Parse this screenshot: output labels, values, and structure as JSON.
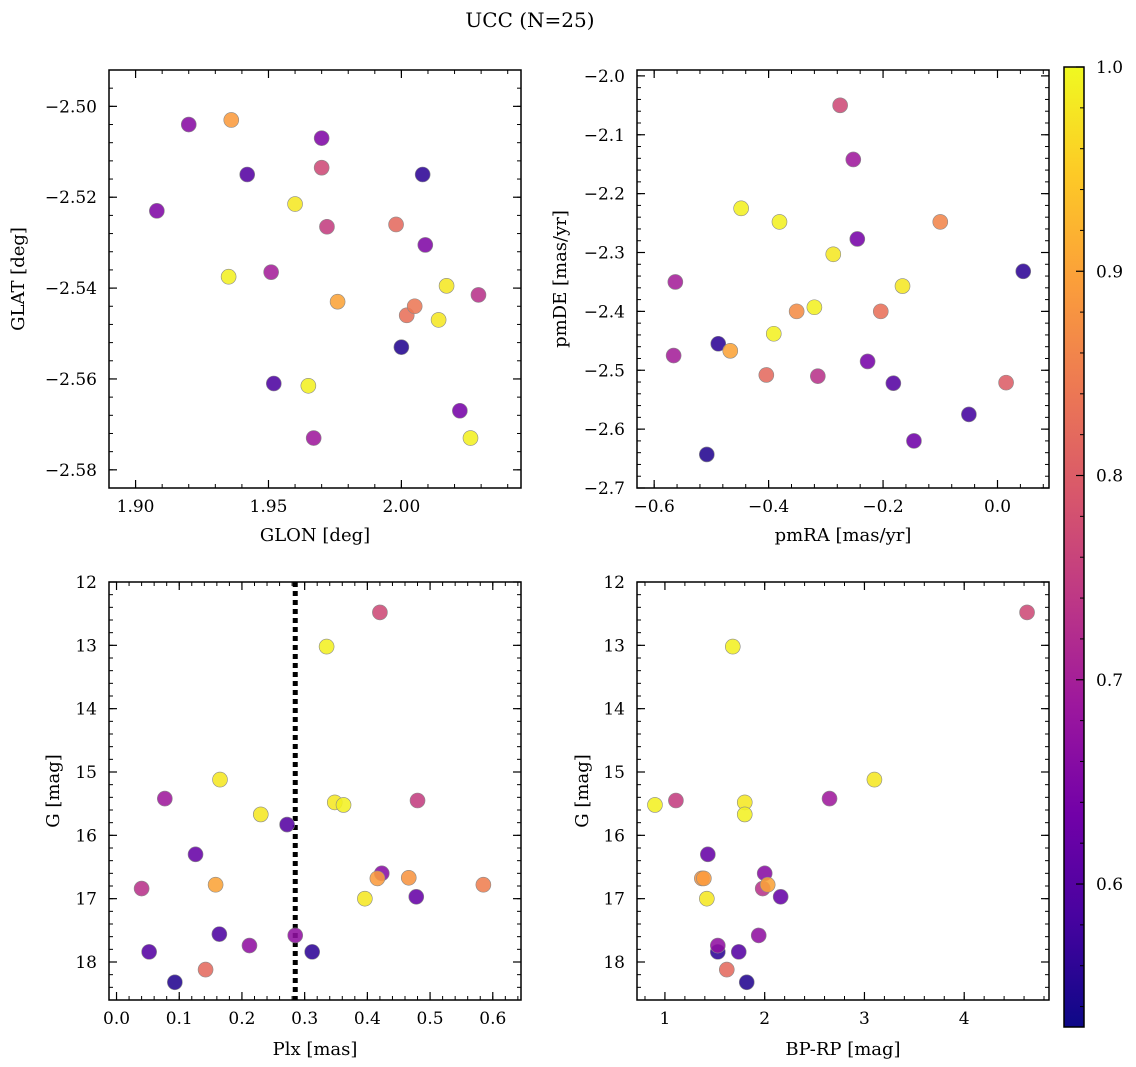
{
  "title": "UCC (N=25)",
  "colormap": {
    "name": "plasma",
    "stops": [
      "#0d0887",
      "#46039f",
      "#7201a8",
      "#9c179e",
      "#bd3786",
      "#d8576b",
      "#ed7953",
      "#fb9f3a",
      "#fdca26",
      "#f0f921"
    ],
    "range": [
      0.53,
      1.0
    ],
    "ticks": [
      0.6,
      0.7,
      0.8,
      0.9,
      1.0
    ],
    "tick_labels": [
      "0.6",
      "0.7",
      "0.8",
      "0.9",
      "1.0"
    ]
  },
  "chart_data": [
    {
      "type": "scatter",
      "xlabel": "GLON [deg]",
      "ylabel": "GLAT [deg]",
      "xlim": [
        1.89,
        2.045
      ],
      "ylim": [
        -2.584,
        -2.492
      ],
      "xticks": [
        1.9,
        1.95,
        2.0
      ],
      "xtick_labels": [
        "1.90",
        "1.95",
        "2.00"
      ],
      "yticks": [
        -2.5,
        -2.52,
        -2.54,
        -2.56,
        -2.58
      ],
      "ytick_labels": [
        "−2.50",
        "−2.52",
        "−2.54",
        "−2.56",
        "−2.58"
      ],
      "x": [
        1.92,
        1.936,
        1.97,
        1.908,
        1.942,
        1.97,
        2.008,
        1.96,
        1.972,
        1.998,
        2.009,
        1.935,
        1.951,
        2.017,
        2.029,
        1.976,
        2.005,
        2.002,
        2.014,
        2.0,
        1.952,
        1.965,
        2.022,
        1.967,
        2.026
      ],
      "y": [
        -2.504,
        -2.503,
        -2.507,
        -2.523,
        -2.515,
        -2.5135,
        -2.515,
        -2.5215,
        -2.5265,
        -2.526,
        -2.5305,
        -2.5375,
        -2.5365,
        -2.5395,
        -2.5415,
        -2.543,
        -2.544,
        -2.546,
        -2.547,
        -2.553,
        -2.561,
        -2.5615,
        -2.567,
        -2.573,
        -2.573
      ],
      "membership": [
        0.66,
        0.89,
        0.65,
        0.65,
        0.6,
        0.77,
        0.56,
        0.98,
        0.75,
        0.82,
        0.65,
        0.99,
        0.7,
        0.98,
        0.73,
        0.9,
        0.84,
        0.83,
        0.98,
        0.55,
        0.59,
        0.99,
        0.64,
        0.69,
        0.99
      ]
    },
    {
      "type": "scatter",
      "xlabel": "pmRA [mas/yr]",
      "ylabel": "pmDE [mas/yr]",
      "xlim": [
        -0.63,
        0.09
      ],
      "ylim": [
        -2.7,
        -1.99
      ],
      "xticks": [
        -0.6,
        -0.4,
        -0.2,
        0.0
      ],
      "xtick_labels": [
        "−0.6",
        "−0.4",
        "−0.2",
        "0.0"
      ],
      "yticks": [
        -2.0,
        -2.1,
        -2.2,
        -2.3,
        -2.4,
        -2.5,
        -2.6,
        -2.7
      ],
      "ytick_labels": [
        "−2.0",
        "−2.1",
        "−2.2",
        "−2.3",
        "−2.4",
        "−2.5",
        "−2.6",
        "−2.7"
      ],
      "x": [
        -0.275,
        -0.252,
        -0.448,
        -0.381,
        -0.1,
        -0.245,
        -0.287,
        -0.563,
        -0.166,
        0.045,
        -0.32,
        -0.351,
        -0.204,
        -0.391,
        -0.488,
        -0.467,
        -0.566,
        -0.227,
        -0.404,
        -0.314,
        -0.182,
        0.015,
        -0.05,
        -0.146,
        -0.508
      ],
      "y": [
        -2.05,
        -2.142,
        -2.225,
        -2.248,
        -2.248,
        -2.277,
        -2.303,
        -2.35,
        -2.357,
        -2.332,
        -2.393,
        -2.4,
        -2.4,
        -2.438,
        -2.455,
        -2.467,
        -2.475,
        -2.485,
        -2.508,
        -2.51,
        -2.522,
        -2.521,
        -2.575,
        -2.62,
        -2.643
      ],
      "membership": [
        0.77,
        0.69,
        0.99,
        0.99,
        0.86,
        0.64,
        0.98,
        0.7,
        0.98,
        0.56,
        0.99,
        0.87,
        0.83,
        0.99,
        0.56,
        0.9,
        0.7,
        0.64,
        0.82,
        0.73,
        0.6,
        0.8,
        0.58,
        0.63,
        0.55
      ]
    },
    {
      "type": "scatter",
      "xlabel": "Plx [mas]",
      "ylabel": "G [mag]",
      "xlim": [
        -0.012,
        0.645
      ],
      "ylim": [
        18.6,
        12.0
      ],
      "y_inverted": true,
      "xticks": [
        0.0,
        0.1,
        0.2,
        0.3,
        0.4,
        0.5,
        0.6
      ],
      "xtick_labels": [
        "0.0",
        "0.1",
        "0.2",
        "0.3",
        "0.4",
        "0.5",
        "0.6"
      ],
      "yticks": [
        12,
        13,
        14,
        15,
        16,
        17,
        18
      ],
      "ytick_labels": [
        "12",
        "13",
        "14",
        "15",
        "16",
        "17",
        "18"
      ],
      "vline_x": 0.285,
      "x": [
        0.42,
        0.335,
        0.165,
        0.077,
        0.48,
        0.348,
        0.362,
        0.23,
        0.272,
        0.126,
        0.423,
        0.416,
        0.466,
        0.158,
        0.04,
        0.585,
        0.396,
        0.478,
        0.164,
        0.285,
        0.212,
        0.052,
        0.312,
        0.142,
        0.093
      ],
      "y": [
        12.48,
        13.02,
        15.12,
        15.42,
        15.45,
        15.48,
        15.52,
        15.67,
        15.83,
        16.3,
        16.6,
        16.68,
        16.67,
        16.78,
        16.84,
        16.78,
        17.0,
        16.97,
        17.56,
        17.58,
        17.74,
        17.84,
        17.84,
        18.12,
        18.32
      ],
      "membership": [
        0.77,
        0.99,
        0.98,
        0.69,
        0.75,
        0.98,
        0.99,
        0.98,
        0.6,
        0.62,
        0.66,
        0.89,
        0.88,
        0.9,
        0.73,
        0.85,
        0.98,
        0.62,
        0.59,
        0.67,
        0.67,
        0.6,
        0.56,
        0.82,
        0.55
      ]
    },
    {
      "type": "scatter",
      "xlabel": "BP-RP [mag]",
      "ylabel": "G [mag]",
      "xlim": [
        0.72,
        4.85
      ],
      "ylim": [
        18.6,
        12.0
      ],
      "y_inverted": true,
      "xticks": [
        1,
        2,
        3,
        4
      ],
      "xtick_labels": [
        "1",
        "2",
        "3",
        "4"
      ],
      "yticks": [
        12,
        13,
        14,
        15,
        16,
        17,
        18
      ],
      "ytick_labels": [
        "12",
        "13",
        "14",
        "15",
        "16",
        "17",
        "18"
      ],
      "x": [
        4.63,
        1.68,
        3.1,
        0.9,
        1.11,
        1.8,
        1.8,
        2.65,
        1.43,
        1.37,
        1.39,
        2.0,
        2.03,
        1.98,
        2.16,
        1.42,
        1.94,
        1.53,
        1.53,
        1.74,
        1.62,
        1.82
      ],
      "y": [
        12.48,
        13.02,
        15.12,
        15.52,
        15.45,
        15.48,
        15.67,
        15.42,
        16.3,
        16.68,
        16.68,
        16.6,
        16.78,
        16.84,
        16.97,
        17.0,
        17.58,
        17.74,
        17.84,
        17.84,
        18.12,
        18.32
      ],
      "membership": [
        0.77,
        0.99,
        0.98,
        0.99,
        0.75,
        0.98,
        0.99,
        0.69,
        0.62,
        0.88,
        0.89,
        0.66,
        0.9,
        0.73,
        0.62,
        0.98,
        0.67,
        0.67,
        0.56,
        0.6,
        0.82,
        0.55
      ]
    }
  ]
}
